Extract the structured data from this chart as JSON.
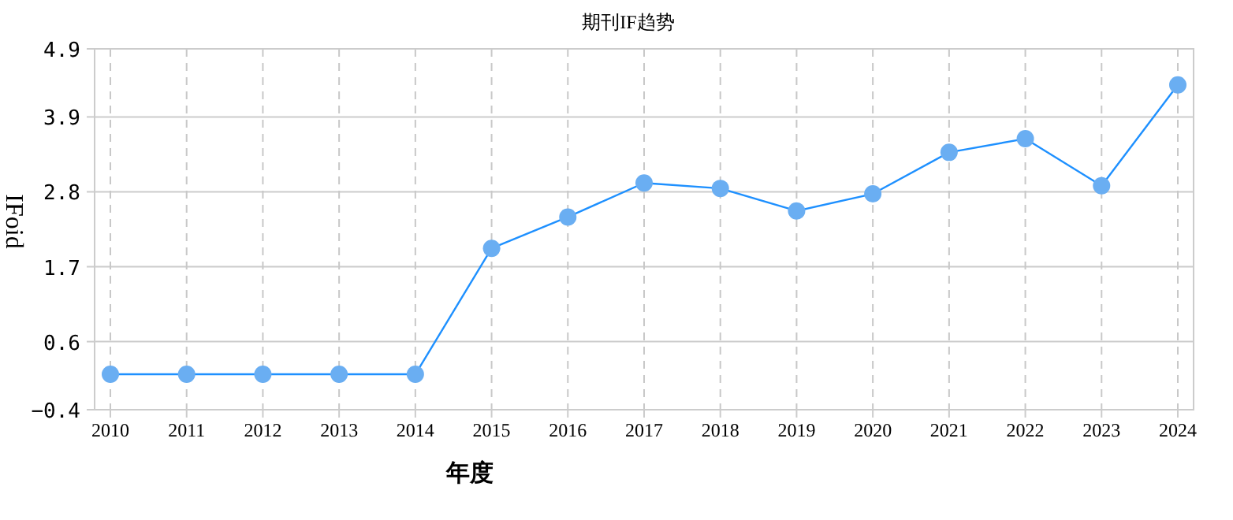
{
  "chart_data": {
    "type": "line",
    "title": "期刊IF趋势",
    "xlabel": "年度",
    "ylabel": "IFoid",
    "categories": [
      "2010",
      "2011",
      "2012",
      "2013",
      "2014",
      "2015",
      "2016",
      "2017",
      "2018",
      "2019",
      "2020",
      "2021",
      "2022",
      "2023",
      "2024"
    ],
    "series": [
      {
        "color": "#1e90ff",
        "values": [
          0.12,
          0.12,
          0.12,
          0.12,
          0.12,
          1.97,
          2.43,
          2.93,
          2.85,
          2.52,
          2.77,
          3.38,
          3.58,
          2.89,
          4.37
        ]
      }
    ],
    "ylim": [
      -0.4,
      4.9
    ],
    "yticks": [
      -0.4,
      0.6,
      1.7,
      2.8,
      3.9,
      4.9
    ],
    "grid": true,
    "marker": "circle",
    "line_style": "solid"
  }
}
